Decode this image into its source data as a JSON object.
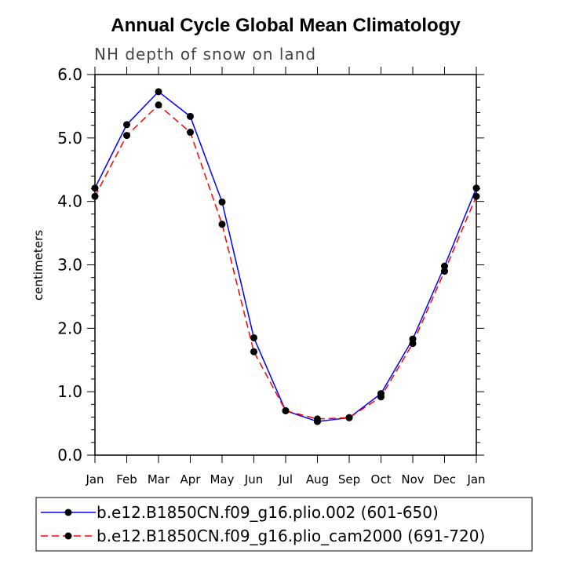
{
  "chart_data": {
    "type": "line",
    "title": "Annual Cycle Global Mean Climatology",
    "subtitle": "NH depth of snow on land",
    "xlabel": "",
    "ylabel": "centimeters",
    "ylim": [
      0.0,
      6.0
    ],
    "y_ticks": [
      "0.0",
      "1.0",
      "2.0",
      "3.0",
      "4.0",
      "5.0",
      "6.0"
    ],
    "categories": [
      "Jan",
      "Feb",
      "Mar",
      "Apr",
      "May",
      "Jun",
      "Jul",
      "Aug",
      "Sep",
      "Oct",
      "Nov",
      "Dec",
      "Jan"
    ],
    "grid": false,
    "legend_position": "bottom",
    "series": [
      {
        "name": "b.e12.B1850CN.f09_g16.plio.002 (601-650)",
        "color": "#0000ff",
        "dash": "solid",
        "values": [
          4.21,
          5.21,
          5.73,
          5.34,
          3.99,
          1.85,
          0.7,
          0.53,
          0.59,
          0.97,
          1.83,
          2.98,
          4.21
        ]
      },
      {
        "name": "b.e12.B1850CN.f09_g16.plio_cam2000 (691-720)",
        "color": "#ff0000",
        "dash": "dashed",
        "values": [
          4.08,
          5.04,
          5.52,
          5.09,
          3.64,
          1.63,
          0.7,
          0.57,
          0.59,
          0.92,
          1.76,
          2.9,
          4.08
        ]
      }
    ]
  }
}
